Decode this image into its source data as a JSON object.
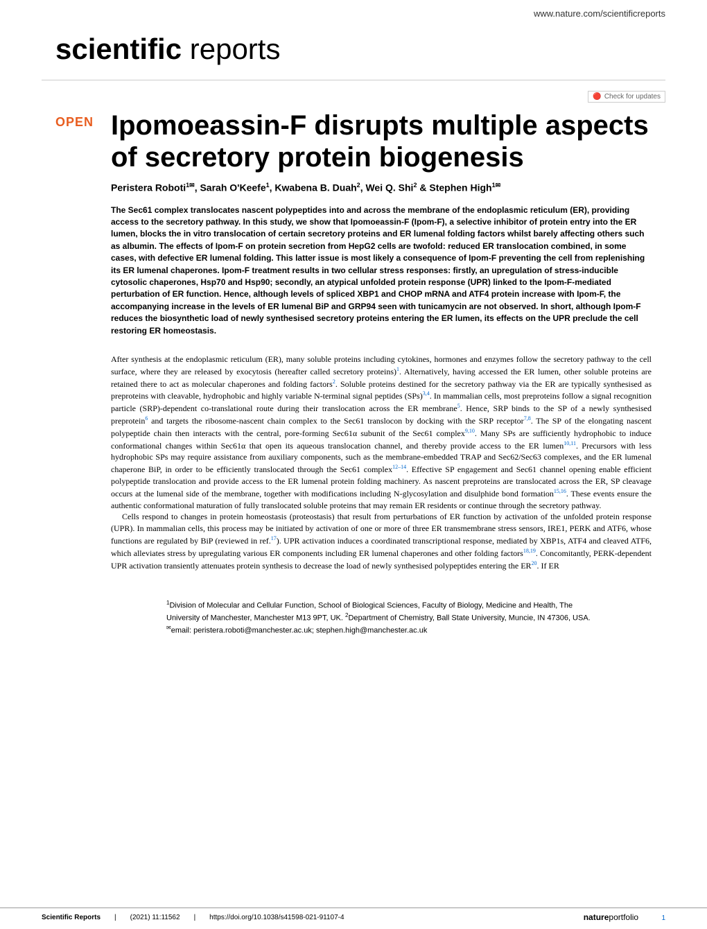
{
  "header": {
    "url": "www.nature.com/scientificreports",
    "journal_bold": "scientific",
    "journal_light": " reports",
    "check_updates": "Check for updates"
  },
  "article": {
    "open_badge": "OPEN",
    "title": "Ipomoeassin-F disrupts multiple aspects of secretory protein biogenesis",
    "authors_html": "Peristera Roboti<sup>1✉</sup>, Sarah O'Keefe<sup>1</sup>, Kwabena B. Duah<sup>2</sup>, Wei Q. Shi<sup>2</sup> & Stephen High<sup>1✉</sup>",
    "abstract": "The Sec61 complex translocates nascent polypeptides into and across the membrane of the endoplasmic reticulum (ER), providing access to the secretory pathway. In this study, we show that Ipomoeassin-F (Ipom-F), a selective inhibitor of protein entry into the ER lumen, blocks the in vitro translocation of certain secretory proteins and ER lumenal folding factors whilst barely affecting others such as albumin. The effects of Ipom-F on protein secretion from HepG2 cells are twofold: reduced ER translocation combined, in some cases, with defective ER lumenal folding. This latter issue is most likely a consequence of Ipom-F preventing the cell from replenishing its ER lumenal chaperones. Ipom-F treatment results in two cellular stress responses: firstly, an upregulation of stress-inducible cytosolic chaperones, Hsp70 and Hsp90; secondly, an atypical unfolded protein response (UPR) linked to the Ipom-F-mediated perturbation of ER function. Hence, although levels of spliced XBP1 and CHOP mRNA and ATF4 protein increase with Ipom-F, the accompanying increase in the levels of ER lumenal BiP and GRP94 seen with tunicamycin are not observed. In short, although Ipom-F reduces the biosynthetic load of newly synthesised secretory proteins entering the ER lumen, its effects on the UPR preclude the cell restoring ER homeostasis."
  },
  "body": {
    "para1": "After synthesis at the endoplasmic reticulum (ER), many soluble proteins including cytokines, hormones and enzymes follow the secretory pathway to the cell surface, where they are released by exocytosis (hereafter called secretory proteins)<sup>1</sup>. Alternatively, having accessed the ER lumen, other soluble proteins are retained there to act as molecular chaperones and folding factors<sup>2</sup>. Soluble proteins destined for the secretory pathway via the ER are typically synthesised as preproteins with cleavable, hydrophobic and highly variable N-terminal signal peptides (SPs)<sup>3,4</sup>. In mammalian cells, most preproteins follow a signal recognition particle (SRP)-dependent co-translational route during their translocation across the ER membrane<sup>5</sup>. Hence, SRP binds to the SP of a newly synthesised preprotein<sup>6</sup> and targets the ribosome-nascent chain complex to the Sec61 translocon by docking with the SRP receptor<sup>7,8</sup>. The SP of the elongating nascent polypeptide chain then interacts with the central, pore-forming Sec61α subunit of the Sec61 complex<sup>9,10</sup>. Many SPs are sufficiently hydrophobic to induce conformational changes within Sec61α that open its aqueous translocation channel, and thereby provide access to the ER lumen<sup>10,11</sup>. Precursors with less hydrophobic SPs may require assistance from auxiliary components, such as the membrane-embedded TRAP and Sec62/Sec63 complexes, and the ER lumenal chaperone BiP, in order to be efficiently translocated through the Sec61 complex<sup>12–14</sup>. Effective SP engagement and Sec61 channel opening enable efficient polypeptide translocation and provide access to the ER lumenal protein folding machinery. As nascent preproteins are translocated across the ER, SP cleavage occurs at the lumenal side of the membrane, together with modifications including N-glycosylation and disulphide bond formation<sup>15,16</sup>. These events ensure the authentic conformational maturation of fully translocated soluble proteins that may remain ER residents or continue through the secretory pathway.",
    "para2": "Cells respond to changes in protein homeostasis (proteostasis) that result from perturbations of ER function by activation of the unfolded protein response (UPR). In mammalian cells, this process may be initiated by activation of one or more of three ER transmembrane stress sensors, IRE1, PERK and ATF6, whose functions are regulated by BiP (reviewed in ref.<sup>17</sup>). UPR activation induces a coordinated transcriptional response, mediated by XBP1s, ATF4 and cleaved ATF6, which alleviates stress by upregulating various ER components including ER lumenal chaperones and other folding factors<sup>18,19</sup>. Concomitantly, PERK-dependent UPR activation transiently attenuates protein synthesis to decrease the load of newly synthesised polypeptides entering the ER<sup>20</sup>. If ER"
  },
  "affiliations": "<sup>1</sup>Division of Molecular and Cellular Function, School of Biological Sciences, Faculty of Biology, Medicine and Health, The University of Manchester, Manchester M13 9PT, UK. <sup>2</sup>Department of Chemistry, Ball State University, Muncie, IN 47306, USA. <sup>✉</sup>email: peristera.roboti@manchester.ac.uk; stephen.high@manchester.ac.uk",
  "footer": {
    "journal": "Scientific Reports",
    "citation": "(2021) 11:11562",
    "doi": "https://doi.org/10.1038/s41598-021-91107-4",
    "publisher_bold": "nature",
    "publisher_light": "portfolio",
    "page": "1"
  },
  "colors": {
    "open_badge": "#e85d1f",
    "link": "#0066cc",
    "text": "#000000",
    "divider": "#cccccc"
  }
}
